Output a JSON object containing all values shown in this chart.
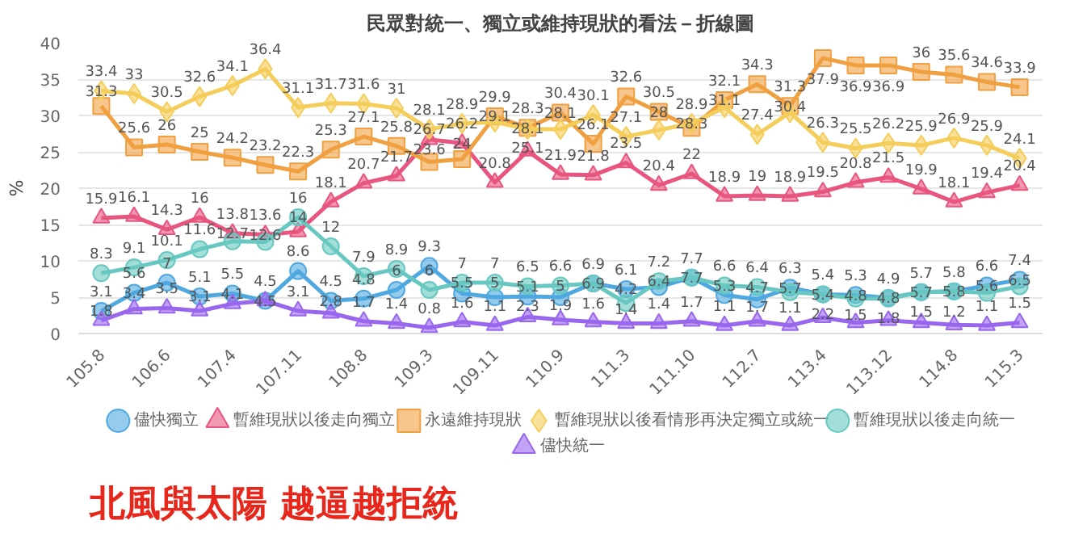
{
  "chart_data": {
    "type": "line",
    "title": "民眾對統一、獨立或維持現狀的看法－折線圖",
    "ylabel": "%",
    "categories": [
      "105.8",
      null,
      "106.6",
      null,
      "107.4",
      null,
      "107.11",
      null,
      "108.8",
      null,
      "109.3",
      null,
      "109.11",
      null,
      "110.9",
      null,
      "111.3",
      null,
      "111.10",
      null,
      "112.7",
      null,
      "113.4",
      null,
      "113.12",
      null,
      "114.8",
      null,
      "115.3"
    ],
    "ylim": [
      0,
      40
    ],
    "yticks": [
      0,
      5,
      10,
      15,
      20,
      25,
      30,
      35,
      40
    ],
    "grid": "y",
    "legend": "bottom",
    "data_labels": true,
    "series": [
      {
        "name": "儘快獨立",
        "color": "#4fa8e0",
        "marker": "circle",
        "values": [
          3.1,
          5.6,
          7,
          5.1,
          5.5,
          4.5,
          8.6,
          4.5,
          4.8,
          6,
          9.3,
          5.5,
          5,
          5.1,
          5,
          6.9,
          6.1,
          6.4,
          7.7,
          5.3,
          4.7,
          6.3,
          5.4,
          5.3,
          4.9,
          5.7,
          5.8,
          6.6,
          7.4
        ]
      },
      {
        "name": "暫維現狀以後走向獨立",
        "color": "#e8557f",
        "marker": "triangle",
        "values": [
          15.9,
          16.1,
          14.3,
          16,
          13.8,
          13.6,
          14,
          18.1,
          20.7,
          21.7,
          26.7,
          26.2,
          20.8,
          25.1,
          21.9,
          21.8,
          23.5,
          20.4,
          22,
          18.9,
          19,
          18.9,
          19.5,
          20.8,
          21.5,
          19.9,
          18.1,
          19.4,
          20.4
        ]
      },
      {
        "name": "永遠維持現狀",
        "color": "#f0a040",
        "marker": "square",
        "values": [
          31.3,
          25.6,
          26,
          25,
          24.2,
          23.2,
          22.3,
          25.3,
          27.1,
          25.8,
          23.6,
          24,
          29.9,
          28.3,
          30.4,
          26.1,
          32.6,
          30.5,
          28.3,
          32.1,
          34.3,
          31.3,
          37.9,
          36.9,
          36.9,
          36,
          35.6,
          34.6,
          33.9
        ]
      },
      {
        "name": "暫維現狀以後看情形再決定獨立或統一",
        "color": "#f5cd5a",
        "marker": "diamond",
        "values": [
          33.4,
          33,
          30.5,
          32.6,
          34.1,
          36.4,
          31.1,
          31.7,
          31.6,
          31,
          28.1,
          28.9,
          29.1,
          28.1,
          28.1,
          30.1,
          27.1,
          28,
          28.9,
          31.1,
          27.4,
          30.4,
          26.3,
          25.5,
          26.2,
          25.9,
          26.9,
          25.9,
          24.1
        ]
      },
      {
        "name": "暫維現狀以後走向統一",
        "color": "#66c8c0",
        "marker": "circle",
        "values": [
          8.3,
          9.1,
          10.1,
          11.6,
          12.7,
          12.6,
          16,
          12,
          7.9,
          8.9,
          6,
          7,
          7,
          6.5,
          6.6,
          6.9,
          4.2,
          7.2,
          7.7,
          6.6,
          6.4,
          5.7,
          5.4,
          4.8,
          4.8,
          5.7,
          5.8,
          5.6,
          6.5
        ]
      },
      {
        "name": "儘快統一",
        "color": "#9966ee",
        "marker": "triangle",
        "values": [
          1.8,
          3.4,
          3.5,
          3.1,
          4.1,
          4.5,
          3.1,
          2.8,
          1.7,
          1.4,
          0.8,
          1.6,
          1.1,
          2.3,
          1.9,
          1.6,
          1.4,
          1.4,
          1.7,
          1.1,
          1.7,
          1.1,
          2.2,
          1.5,
          1.8,
          1.5,
          1.2,
          1.1,
          1.5
        ]
      }
    ],
    "annotations": [
      "北風與太陽 越逼越拒統"
    ]
  }
}
